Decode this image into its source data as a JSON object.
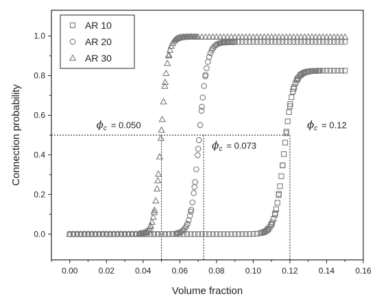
{
  "chart_data": {
    "type": "scatter",
    "xlabel": "Volume fraction",
    "ylabel": "Connection probability",
    "xlim": [
      -0.01,
      0.16
    ],
    "ylim": [
      -0.13,
      1.13
    ],
    "xticks": [
      "0.00",
      "0.02",
      "0.04",
      "0.06",
      "0.08",
      "0.10",
      "0.12",
      "0.14",
      "0.16"
    ],
    "yticks": [
      "0.0",
      "0.2",
      "0.4",
      "0.6",
      "0.8",
      "1.0"
    ],
    "xtick_values": [
      0,
      0.02,
      0.04,
      0.06,
      0.08,
      0.1,
      0.12,
      0.14,
      0.16
    ],
    "ytick_values": [
      0,
      0.2,
      0.4,
      0.6,
      0.8,
      1.0
    ],
    "legend_position": "top-left",
    "grid": false,
    "series": [
      {
        "name": "AR 10",
        "marker": "square",
        "color": "#777777",
        "center": 0.1168,
        "slope": 40,
        "cap": 0.825,
        "xstart": 0.0,
        "xend": 0.15
      },
      {
        "name": "AR 20",
        "marker": "circle",
        "color": "#777777",
        "center": 0.0705,
        "slope": 45,
        "cap": 0.97,
        "xstart": 0.0,
        "xend": 0.15
      },
      {
        "name": "AR 30",
        "marker": "triangle",
        "color": "#777777",
        "center": 0.0498,
        "slope": 55,
        "cap": 0.995,
        "xstart": 0.0,
        "xend": 0.15
      }
    ],
    "threshold": {
      "y": 0.5,
      "marks": [
        {
          "x": 0.05,
          "label_symbol": "ϕ",
          "label_sub": "c",
          "label_value": "= 0.050",
          "anchor": "left"
        },
        {
          "x": 0.073,
          "label_symbol": "ϕ",
          "label_sub": "c",
          "label_value": "= 0.073",
          "anchor": "below"
        },
        {
          "x": 0.12,
          "label_symbol": "ϕ",
          "label_sub": "c",
          "label_value": "= 0.12",
          "anchor": "right"
        }
      ]
    }
  }
}
